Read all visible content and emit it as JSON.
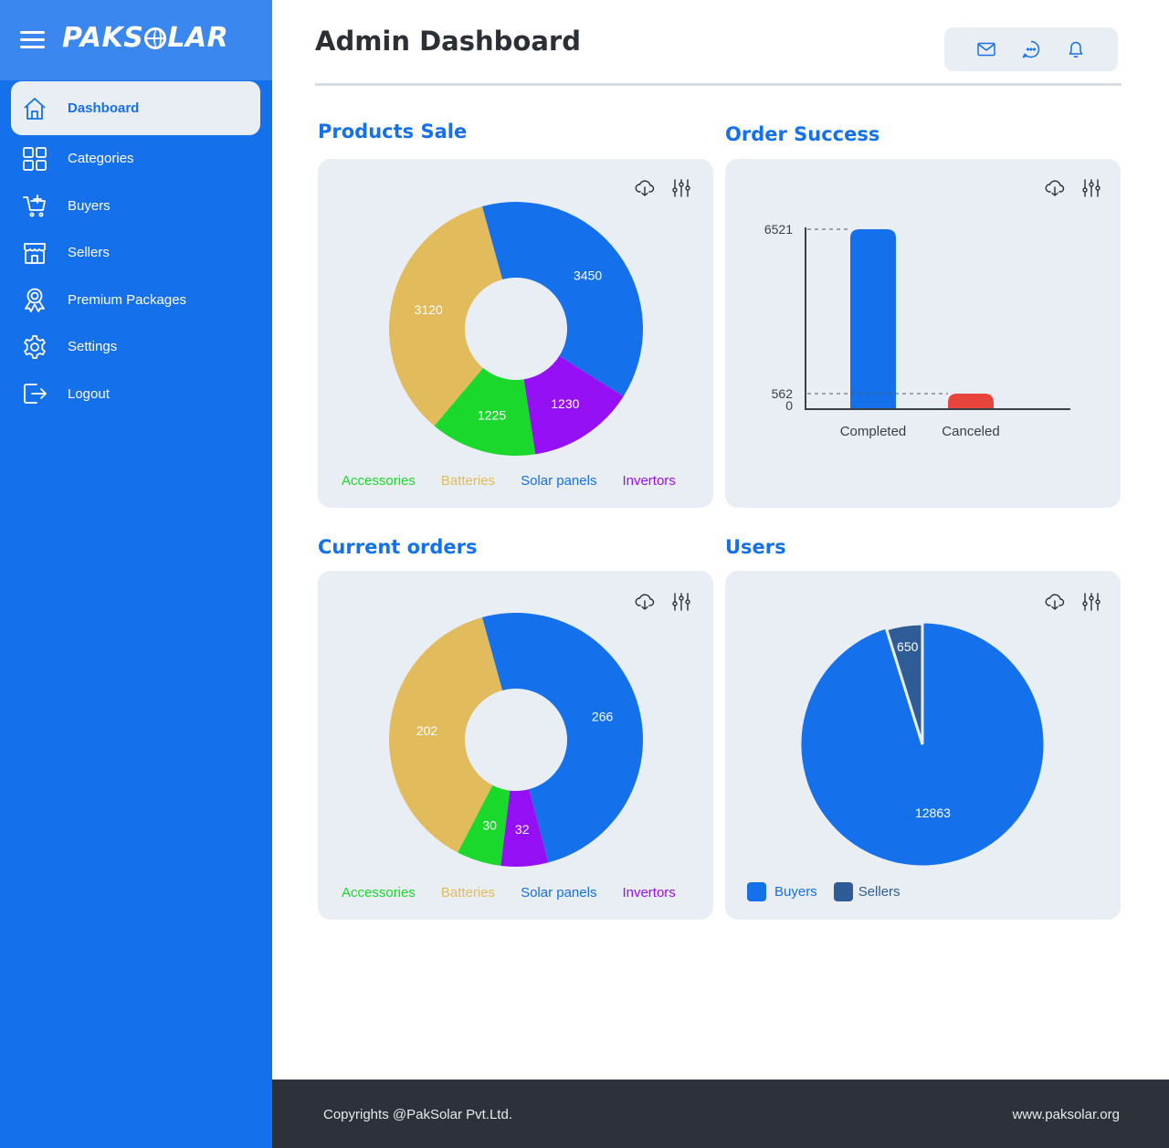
{
  "app": {
    "logo_text": "PAKSOLAR"
  },
  "sidebar": {
    "items": [
      {
        "label": "Dashboard",
        "icon": "home-icon",
        "active": true
      },
      {
        "label": "Categories",
        "icon": "grid-icon",
        "active": false
      },
      {
        "label": "Buyers",
        "icon": "cart-icon",
        "active": false
      },
      {
        "label": "Sellers",
        "icon": "store-icon",
        "active": false
      },
      {
        "label": "Premium Packages",
        "icon": "award-icon",
        "active": false
      },
      {
        "label": "Settings",
        "icon": "gear-icon",
        "active": false
      },
      {
        "label": "Logout",
        "icon": "logout-icon",
        "active": false
      }
    ]
  },
  "header": {
    "title": "Admin Dashboard",
    "actions": [
      "mail-icon",
      "chat-icon",
      "bell-icon"
    ]
  },
  "colors": {
    "brand": "#1570ec",
    "accessories": "#1ad92c",
    "batteries": "#e2bb5c",
    "solar_panels": "#1570ec",
    "invertors": "#9510f5",
    "canceled": "#e7443b",
    "sellers": "#2f5b96",
    "card": "#e9eef5"
  },
  "sections": {
    "products_sale": {
      "title": "Products Sale"
    },
    "order_success": {
      "title": "Order Success"
    },
    "current_orders": {
      "title": "Current orders"
    },
    "users": {
      "title": "Users"
    }
  },
  "legend_products": [
    "Accessories",
    "Batteries",
    "Solar panels",
    "Invertors"
  ],
  "chart_data": [
    {
      "id": "products_sale",
      "type": "pie",
      "donut": true,
      "labels": [
        "Solar panels",
        "Invertors",
        "Accessories",
        "Batteries"
      ],
      "values": [
        3450,
        1230,
        1225,
        3120
      ],
      "colors": [
        "#1570ec",
        "#9510f5",
        "#1ad92c",
        "#e2bb5c"
      ]
    },
    {
      "id": "order_success",
      "type": "bar",
      "categories": [
        "Completed",
        "Canceled"
      ],
      "values": [
        6521,
        562
      ],
      "colors": [
        "#1570ec",
        "#e7443b"
      ],
      "y_ticks": [
        "6521",
        "562",
        "0"
      ]
    },
    {
      "id": "current_orders",
      "type": "pie",
      "donut": true,
      "labels": [
        "Solar panels",
        "Invertors",
        "Accessories",
        "Batteries"
      ],
      "values": [
        266,
        32,
        30,
        202
      ],
      "colors": [
        "#1570ec",
        "#9510f5",
        "#1ad92c",
        "#e2bb5c"
      ]
    },
    {
      "id": "users",
      "type": "pie",
      "donut": false,
      "labels": [
        "Buyers",
        "Sellers"
      ],
      "values": [
        12863,
        650
      ],
      "colors": [
        "#1570ec",
        "#2f5b96"
      ],
      "legend": [
        "Buyers",
        "Sellers"
      ]
    }
  ],
  "footer": {
    "copyright": "Copyrights @PakSolar Pvt.Ltd.",
    "website": "www.paksolar.org"
  }
}
